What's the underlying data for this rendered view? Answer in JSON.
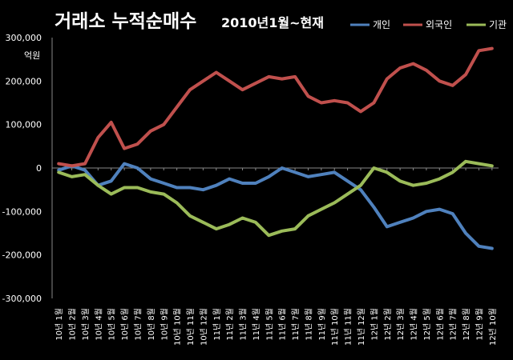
{
  "chart_data": {
    "type": "line",
    "title": "거래소 누적순매수",
    "subtitle": "2010년1월~현재",
    "unit_label": "억원",
    "ylim": [
      -300000,
      300000
    ],
    "yticks": [
      "300,000",
      "200,000",
      "100,000",
      "0",
      "-100,000",
      "-200,000",
      "-300,000"
    ],
    "ytick_values": [
      300000,
      200000,
      100000,
      0,
      -100000,
      -200000,
      -300000
    ],
    "grid": false,
    "legend_position": "top-right",
    "categories": [
      "10년 1월",
      "10년 2월",
      "10년 3월",
      "10년 4월",
      "10년 5월",
      "10년 6월",
      "10년 7월",
      "10년 8월",
      "10년 9월",
      "10년 10월",
      "10년 11월",
      "10년 12월",
      "11년 1월",
      "11년 2월",
      "11년 3월",
      "11년 4월",
      "11년 5월",
      "11년 6월",
      "11년 7월",
      "11년 8월",
      "11년 9월",
      "11년 10월",
      "11년 11월",
      "11년 12월",
      "12년 1월",
      "12년 2월",
      "12년 3월",
      "12년 4월",
      "12년 5월",
      "12년 6월",
      "12년 7월",
      "12년 8월",
      "12년 9월",
      "12년 10월"
    ],
    "series": [
      {
        "name": "개인",
        "color": "#4f81bd",
        "values": [
          -5000,
          5000,
          -5000,
          -40000,
          -30000,
          10000,
          0,
          -25000,
          -35000,
          -45000,
          -45000,
          -50000,
          -40000,
          -25000,
          -35000,
          -35000,
          -20000,
          0,
          -10000,
          -20000,
          -15000,
          -10000,
          -30000,
          -50000,
          -90000,
          -135000,
          -125000,
          -115000,
          -100000,
          -95000,
          -105000,
          -150000,
          -180000,
          -185000
        ]
      },
      {
        "name": "외국인",
        "color": "#c0504d",
        "values": [
          10000,
          5000,
          10000,
          70000,
          105000,
          45000,
          55000,
          85000,
          100000,
          140000,
          180000,
          200000,
          220000,
          200000,
          180000,
          195000,
          210000,
          205000,
          210000,
          165000,
          150000,
          155000,
          150000,
          130000,
          150000,
          205000,
          230000,
          240000,
          225000,
          200000,
          190000,
          215000,
          270000,
          275000
        ]
      },
      {
        "name": "기관",
        "color": "#9bbb59",
        "values": [
          -10000,
          -20000,
          -15000,
          -40000,
          -60000,
          -45000,
          -45000,
          -55000,
          -60000,
          -80000,
          -110000,
          -125000,
          -140000,
          -130000,
          -115000,
          -125000,
          -155000,
          -145000,
          -140000,
          -110000,
          -95000,
          -80000,
          -60000,
          -40000,
          0,
          -10000,
          -30000,
          -40000,
          -35000,
          -25000,
          -10000,
          15000,
          10000,
          5000
        ]
      }
    ]
  }
}
